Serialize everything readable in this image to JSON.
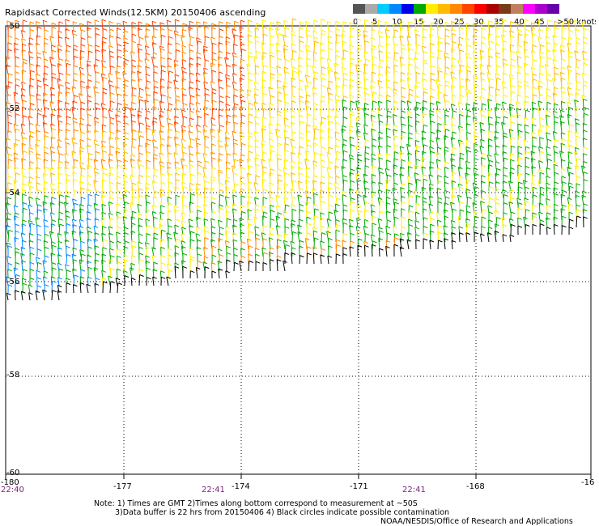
{
  "title": "Rapidsact Corrected Winds(12.5KM) 20150406 ascending",
  "legend": {
    "unit_label": ">50 knots",
    "tick_labels": [
      "0",
      "5",
      "10",
      "15",
      "20",
      "25",
      "30",
      "35",
      "40",
      "45"
    ],
    "colors": [
      "#555555",
      "#aaaaaa",
      "#00ccff",
      "#0088ff",
      "#0000ee",
      "#00aa00",
      "#ffee00",
      "#ffbb00",
      "#ff8800",
      "#ff4400",
      "#ff0000",
      "#aa0000",
      "#7a3a1a",
      "#c08060",
      "#ff00ff",
      "#aa00cc",
      "#6600aa"
    ]
  },
  "axes": {
    "x_ticks": [
      "-180",
      "-177",
      "-174",
      "-171",
      "-168",
      "-16"
    ],
    "y_ticks": [
      "-50",
      "-52",
      "-54",
      "-56",
      "-58",
      "-60"
    ]
  },
  "times": [
    "22:40",
    "22:41",
    "22:41"
  ],
  "notes": {
    "line1": "Note: 1) Times are GMT 2)Times along bottom correspond to measurement at ~50S",
    "line2": "3)Data buffer is 22 hrs from 20150406 4) Black circles indicate possible contamination",
    "line3": "NOAA/NESDIS/Office of Research and Applications"
  }
}
